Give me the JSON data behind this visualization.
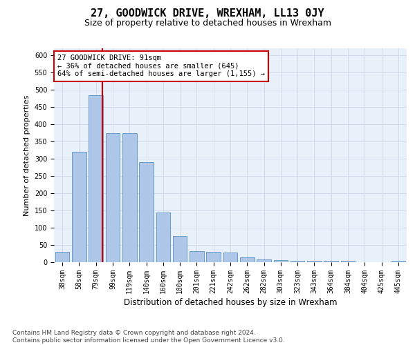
{
  "title": "27, GOODWICK DRIVE, WREXHAM, LL13 0JY",
  "subtitle": "Size of property relative to detached houses in Wrexham",
  "xlabel": "Distribution of detached houses by size in Wrexham",
  "ylabel": "Number of detached properties",
  "bar_labels": [
    "38sqm",
    "58sqm",
    "79sqm",
    "99sqm",
    "119sqm",
    "140sqm",
    "160sqm",
    "180sqm",
    "201sqm",
    "221sqm",
    "242sqm",
    "262sqm",
    "282sqm",
    "303sqm",
    "323sqm",
    "343sqm",
    "364sqm",
    "384sqm",
    "404sqm",
    "425sqm",
    "445sqm"
  ],
  "bar_values": [
    30,
    320,
    485,
    375,
    375,
    290,
    145,
    77,
    33,
    30,
    28,
    15,
    8,
    7,
    5,
    5,
    5,
    5,
    0,
    0,
    5
  ],
  "bar_color": "#aec6e8",
  "bar_edgecolor": "#5a8fc0",
  "grid_color": "#d0d8e8",
  "background_color": "#e8f0fa",
  "vline_x": 2.4,
  "vline_color": "#cc0000",
  "annotation_text": "27 GOODWICK DRIVE: 91sqm\n← 36% of detached houses are smaller (645)\n64% of semi-detached houses are larger (1,155) →",
  "annotation_box_color": "#cc0000",
  "ylim": [
    0,
    620
  ],
  "yticks": [
    0,
    50,
    100,
    150,
    200,
    250,
    300,
    350,
    400,
    450,
    500,
    550,
    600
  ],
  "footer": "Contains HM Land Registry data © Crown copyright and database right 2024.\nContains public sector information licensed under the Open Government Licence v3.0.",
  "title_fontsize": 11,
  "subtitle_fontsize": 9,
  "xlabel_fontsize": 8.5,
  "ylabel_fontsize": 8,
  "tick_fontsize": 7,
  "annotation_fontsize": 7.5,
  "footer_fontsize": 6.5
}
